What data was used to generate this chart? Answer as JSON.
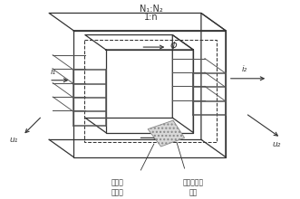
{
  "title1": "N₁:N₂",
  "title2": "1:n",
  "phi_label": "Φ",
  "i1_label": "i₁",
  "i2_label": "i₂",
  "u1_label": "u₁",
  "u2_label": "u₂",
  "label_core_area": "磁心横\n截面积",
  "label_flux": "电流产生的\n磁通",
  "bg_color": "#ffffff",
  "line_color": "#333333"
}
